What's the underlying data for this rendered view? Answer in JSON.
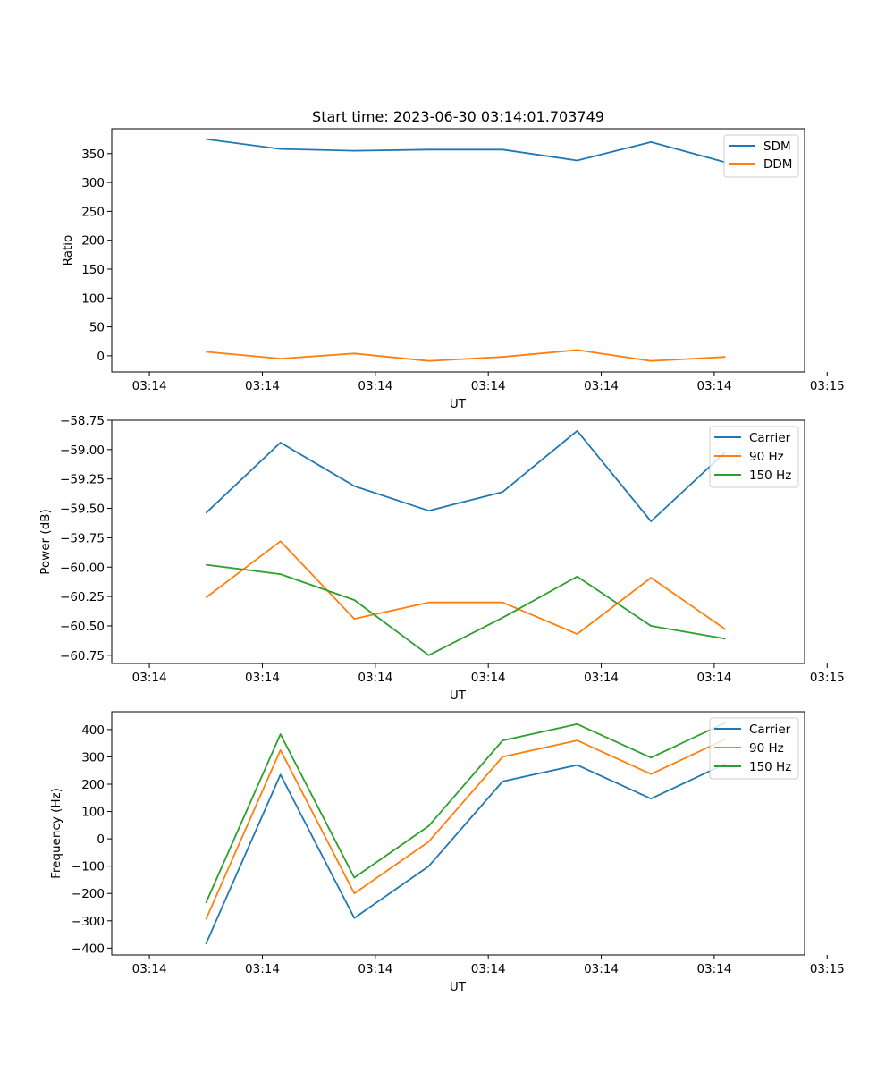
{
  "chart_data": [
    {
      "type": "line",
      "title": "Start time: 2023-06-30 03:14:01.703749",
      "xlabel": "UT",
      "ylabel": "Ratio",
      "xlim": [
        -0.5,
        8.7
      ],
      "ylim": [
        -28,
        393
      ],
      "x_ticks": [
        0,
        1.5,
        3,
        4.5,
        6,
        7.5,
        9
      ],
      "x_tick_labels": [
        "03:14",
        "03:14",
        "03:14",
        "03:14",
        "03:14",
        "03:14",
        "03:15"
      ],
      "y_ticks": [
        0,
        50,
        100,
        150,
        200,
        250,
        300,
        350
      ],
      "y_tick_labels": [
        "0",
        "50",
        "100",
        "150",
        "200",
        "250",
        "300",
        "350"
      ],
      "x": [
        0.75,
        1.74,
        2.72,
        3.71,
        4.69,
        5.68,
        6.66,
        7.65
      ],
      "series": [
        {
          "name": "SDM",
          "color": "#1f77b4",
          "values": [
            375,
            358,
            355,
            357,
            357,
            338,
            370,
            335
          ]
        },
        {
          "name": "DDM",
          "color": "#ff7f0e",
          "values": [
            7,
            -5,
            4,
            -9,
            -2,
            10,
            -9,
            -2
          ]
        }
      ],
      "legend": "top-right",
      "grid": false
    },
    {
      "type": "line",
      "title": "",
      "xlabel": "UT",
      "ylabel": "Power (dB)",
      "xlim": [
        -0.5,
        8.7
      ],
      "ylim": [
        -60.82,
        -58.75
      ],
      "x_ticks": [
        0,
        1.5,
        3,
        4.5,
        6,
        7.5,
        9
      ],
      "x_tick_labels": [
        "03:14",
        "03:14",
        "03:14",
        "03:14",
        "03:14",
        "03:14",
        "03:15"
      ],
      "y_ticks": [
        -58.75,
        -59.0,
        -59.25,
        -59.5,
        -59.75,
        -60.0,
        -60.25,
        -60.5,
        -60.75
      ],
      "y_tick_labels": [
        "−58.75",
        "−59.00",
        "−59.25",
        "−59.50",
        "−59.75",
        "−60.00",
        "−60.25",
        "−60.50",
        "−60.75"
      ],
      "x": [
        0.75,
        1.74,
        2.72,
        3.71,
        4.69,
        5.68,
        6.66,
        7.65
      ],
      "series": [
        {
          "name": "Carrier",
          "color": "#1f77b4",
          "values": [
            -59.54,
            -58.94,
            -59.31,
            -59.52,
            -59.36,
            -58.84,
            -59.61,
            -59.02
          ]
        },
        {
          "name": "90 Hz",
          "color": "#ff7f0e",
          "values": [
            -60.26,
            -59.78,
            -60.44,
            -60.3,
            -60.3,
            -60.57,
            -60.09,
            -60.53
          ]
        },
        {
          "name": "150 Hz",
          "color": "#2ca02c",
          "values": [
            -59.98,
            -60.06,
            -60.28,
            -60.75,
            -60.43,
            -60.08,
            -60.5,
            -60.61
          ]
        }
      ],
      "legend": "top-right",
      "grid": false
    },
    {
      "type": "line",
      "title": "",
      "xlabel": "UT",
      "ylabel": "Frequency (Hz)",
      "xlim": [
        -0.5,
        8.7
      ],
      "ylim": [
        -425,
        465
      ],
      "x_ticks": [
        0,
        1.5,
        3,
        4.5,
        6,
        7.5,
        9
      ],
      "x_tick_labels": [
        "03:14",
        "03:14",
        "03:14",
        "03:14",
        "03:14",
        "03:14",
        "03:15"
      ],
      "y_ticks": [
        -400,
        -300,
        -200,
        -100,
        0,
        100,
        200,
        300,
        400
      ],
      "y_tick_labels": [
        "−400",
        "−300",
        "−200",
        "−100",
        "0",
        "100",
        "200",
        "300",
        "400"
      ],
      "x": [
        0.75,
        1.74,
        2.72,
        3.71,
        4.69,
        5.68,
        6.66,
        7.65
      ],
      "series": [
        {
          "name": "Carrier",
          "color": "#1f77b4",
          "values": [
            -385,
            235,
            -290,
            -100,
            210,
            270,
            147,
            275
          ]
        },
        {
          "name": "90 Hz",
          "color": "#ff7f0e",
          "values": [
            -295,
            325,
            -200,
            -10,
            300,
            360,
            237,
            365
          ]
        },
        {
          "name": "150 Hz",
          "color": "#2ca02c",
          "values": [
            -235,
            383,
            -142,
            47,
            360,
            420,
            297,
            425
          ]
        }
      ],
      "legend": "top-right",
      "grid": false
    }
  ]
}
